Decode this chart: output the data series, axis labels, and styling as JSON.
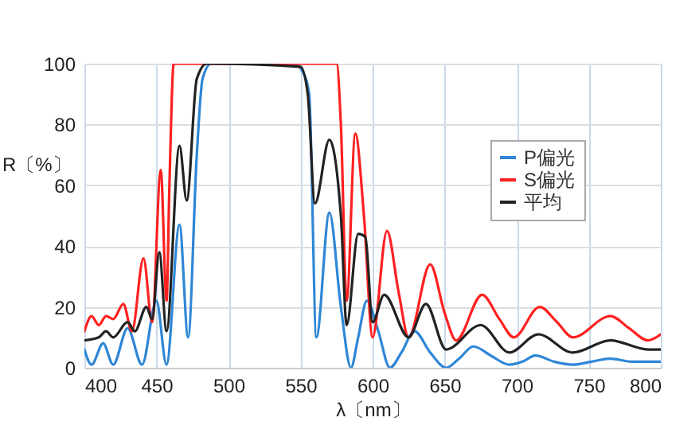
{
  "chart_data": {
    "type": "line",
    "xlabel": "λ〔nm〕",
    "ylabel": "R〔%〕",
    "xlim": [
      400,
      800
    ],
    "ylim": [
      0,
      100
    ],
    "xticks": [
      400,
      450,
      500,
      550,
      600,
      650,
      700,
      750,
      800
    ],
    "yticks": [
      0,
      20,
      40,
      60,
      80,
      100
    ],
    "grid": true,
    "legend": "top right",
    "marker": "none",
    "line_style": "solid",
    "series": [
      {
        "name": "P偏光",
        "color": "#2e86d6",
        "x": [
          400,
          405,
          413,
          420,
          430,
          440,
          450,
          457,
          466,
          472,
          478,
          482,
          488,
          495,
          545,
          552,
          556,
          561,
          570,
          578,
          585,
          590,
          596,
          604,
          612,
          620,
          629,
          640,
          651,
          660,
          670,
          682,
          695,
          704,
          713,
          726,
          739,
          752,
          765,
          780,
          800
        ],
        "values": [
          6,
          1,
          8,
          1,
          13,
          1,
          22,
          1,
          47,
          10,
          70,
          95,
          100,
          100,
          100,
          97,
          90,
          10,
          51,
          20,
          0,
          10,
          22,
          12,
          0,
          5,
          12,
          5,
          0,
          3,
          7,
          4,
          1,
          2,
          4,
          2,
          1,
          2,
          3,
          2,
          2
        ]
      },
      {
        "name": "S偏光",
        "color": "#ff2020",
        "x": [
          400,
          405,
          410,
          415,
          420,
          427,
          433,
          441,
          447,
          453,
          457,
          459,
          462,
          470,
          575,
          578,
          582,
          588,
          594,
          600,
          610,
          618,
          625,
          640,
          650,
          658,
          676,
          688,
          698,
          716,
          728,
          739,
          765,
          778,
          791,
          800
        ],
        "values": [
          12,
          17,
          14,
          17,
          16,
          21,
          12,
          36,
          15,
          65,
          22,
          60,
          100,
          100,
          100,
          80,
          22,
          77,
          50,
          10,
          45,
          25,
          10,
          34,
          18,
          9,
          24,
          16,
          10,
          20,
          15,
          10,
          17,
          13,
          9,
          11
        ]
      },
      {
        "name": "平均",
        "color": "#222222",
        "x": [
          400,
          410,
          415,
          420,
          430,
          435,
          443,
          447,
          452,
          457,
          466,
          471,
          478,
          485,
          550,
          555,
          560,
          570,
          578,
          582,
          590,
          595,
          600,
          608,
          625,
          637,
          651,
          675,
          695,
          715,
          739,
          765,
          791,
          800
        ],
        "values": [
          9,
          10,
          12,
          10,
          15,
          12,
          20,
          16,
          38,
          12,
          73,
          55,
          95,
          100,
          99,
          90,
          54,
          75,
          50,
          14,
          44,
          43,
          15,
          24,
          10,
          21,
          6,
          14,
          5,
          11,
          5,
          9,
          6,
          6
        ]
      }
    ]
  }
}
